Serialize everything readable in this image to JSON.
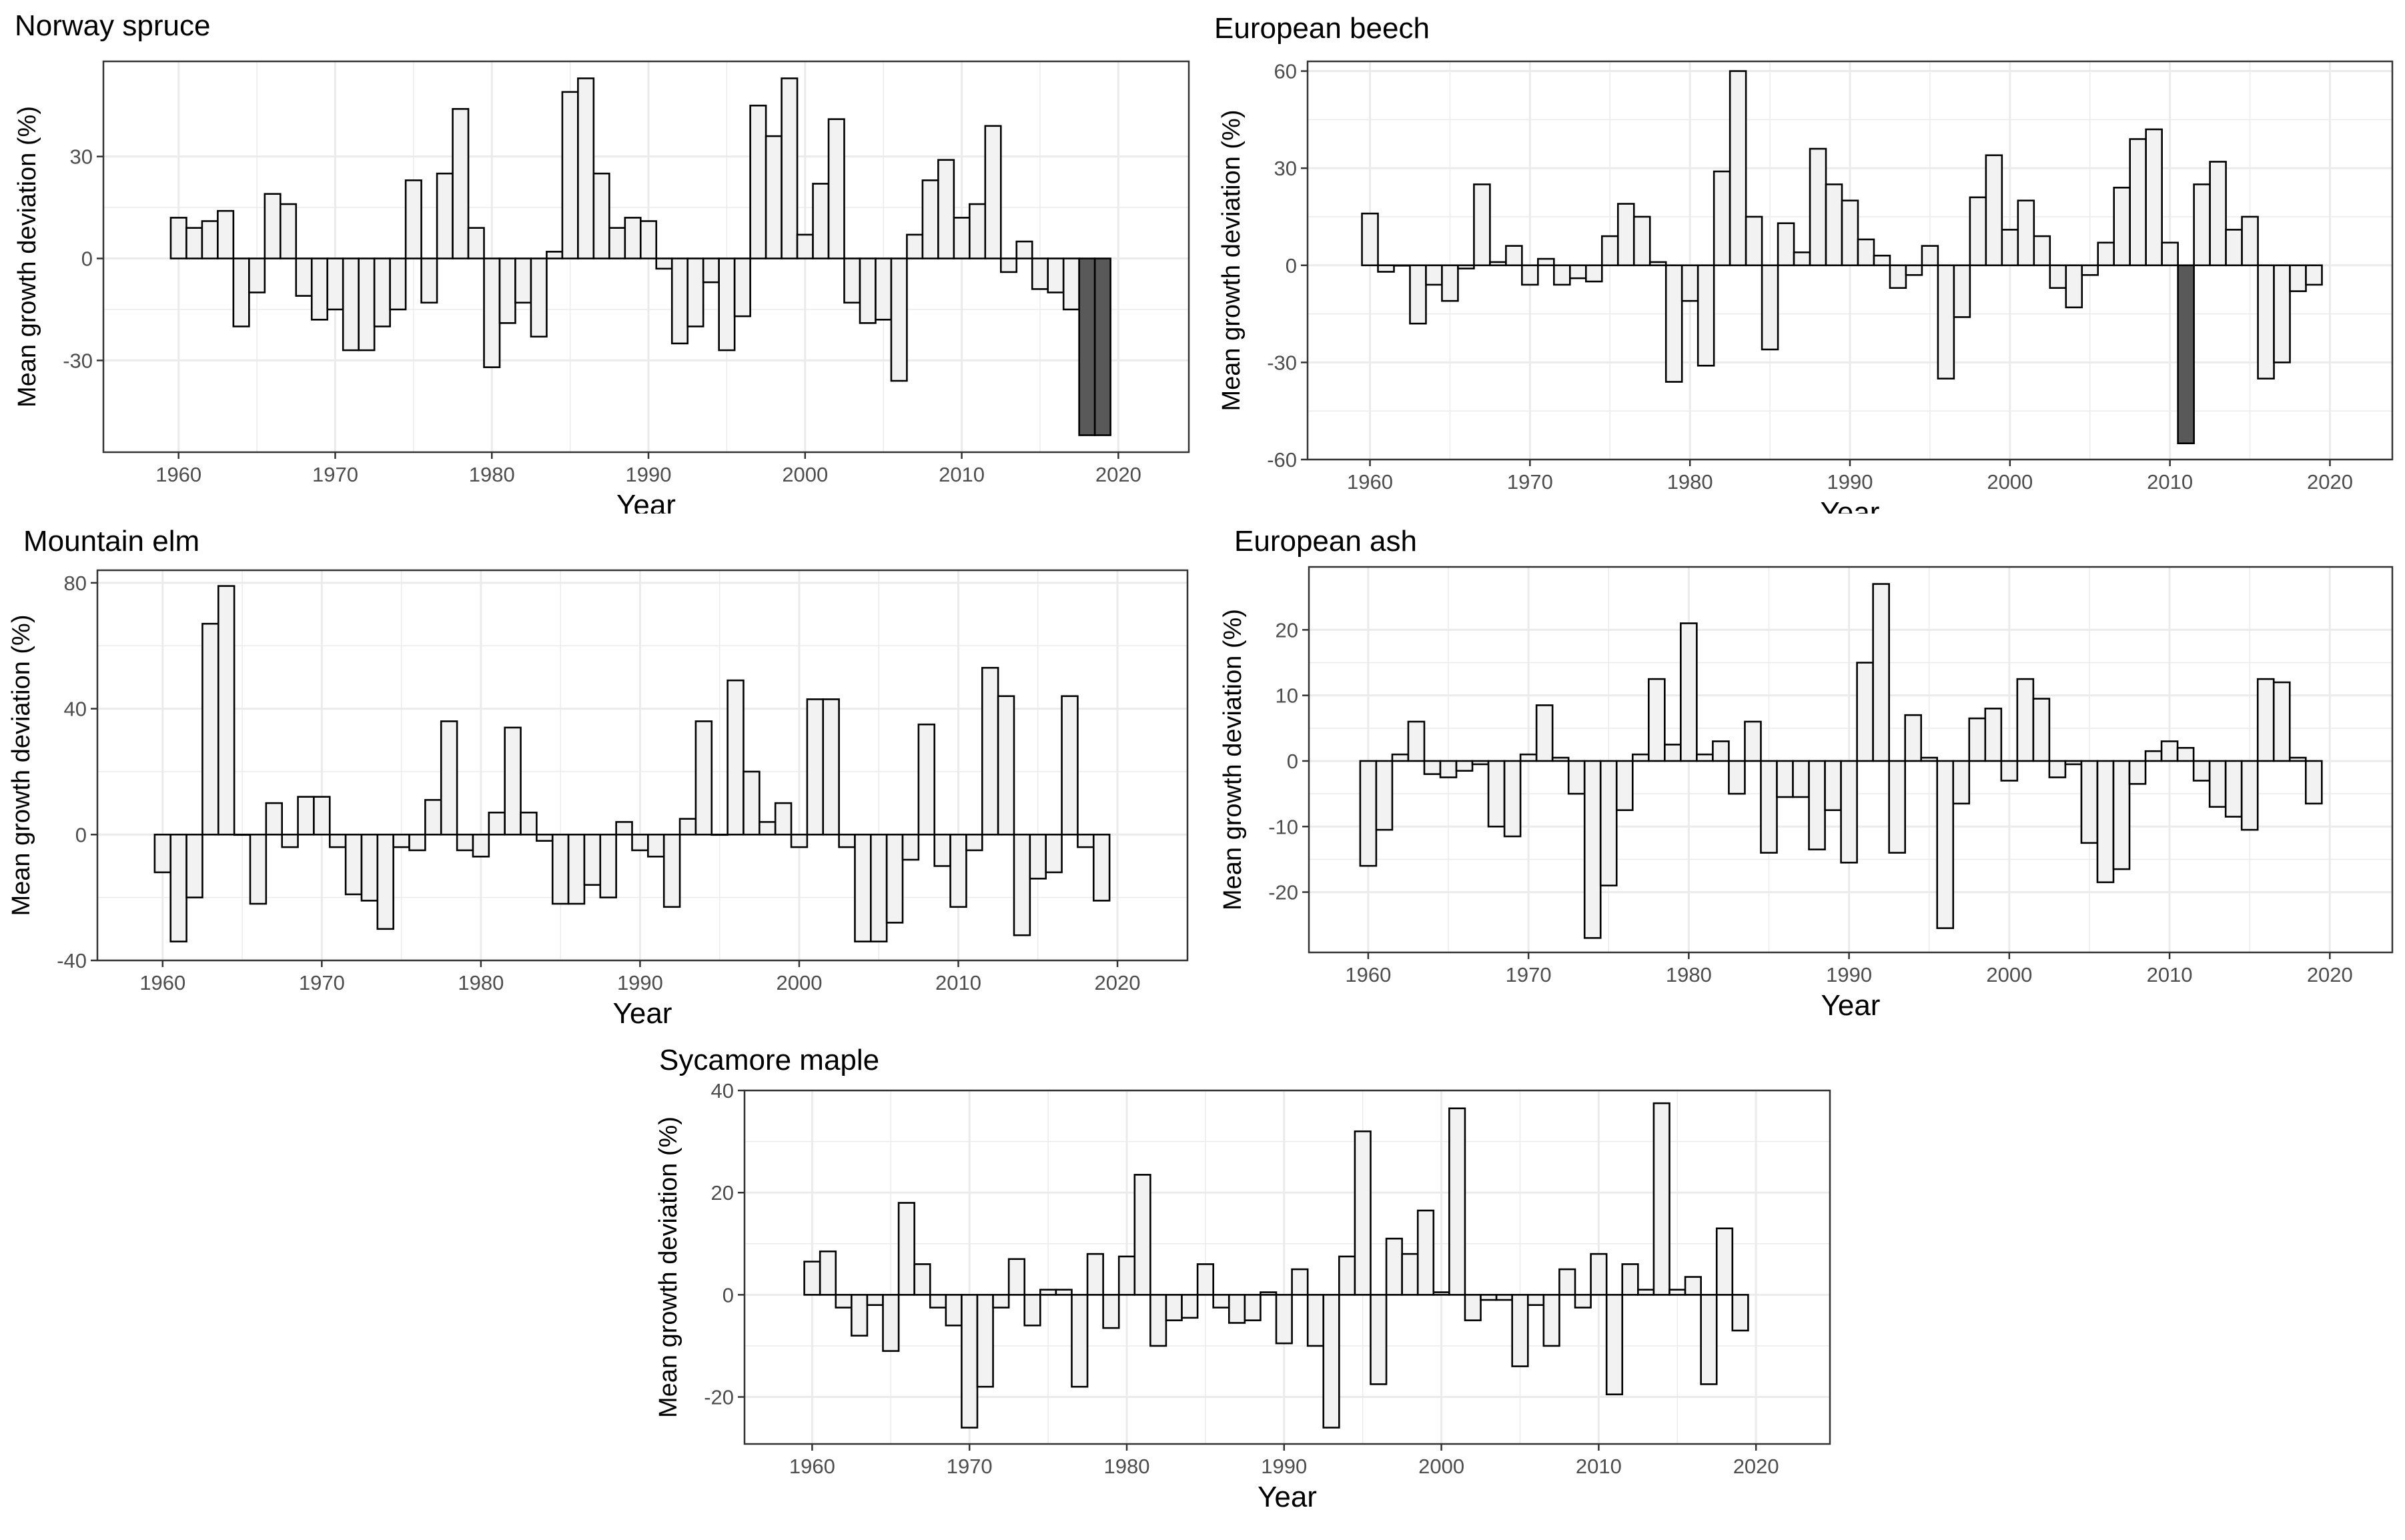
{
  "colors": {
    "bar_fill_light": "#f2f2f2",
    "bar_fill_dark": "#595959",
    "bar_stroke": "#000000",
    "grid": "#ebebeb",
    "panel_border": "#333333",
    "tick_text": "#4d4d4d"
  },
  "chart_data": [
    {
      "type": "bar",
      "title": "Norway spruce",
      "xlabel": "Year",
      "ylabel": "Mean growth deviation (%)",
      "xlim": [
        1955.2,
        2024.5
      ],
      "ylim": [
        -57,
        58
      ],
      "xticks": [
        1960,
        1970,
        1980,
        1990,
        2000,
        2010,
        2020
      ],
      "yticks": [
        -30,
        0,
        30
      ],
      "grid": true,
      "x": [
        1960,
        1961,
        1962,
        1963,
        1964,
        1965,
        1966,
        1967,
        1968,
        1969,
        1970,
        1971,
        1972,
        1973,
        1974,
        1975,
        1976,
        1977,
        1978,
        1979,
        1980,
        1981,
        1982,
        1983,
        1984,
        1985,
        1986,
        1987,
        1988,
        1989,
        1990,
        1991,
        1992,
        1993,
        1994,
        1995,
        1996,
        1997,
        1998,
        1999,
        2000,
        2001,
        2002,
        2003,
        2004,
        2005,
        2006,
        2007,
        2008,
        2009,
        2010,
        2011,
        2012,
        2013,
        2014,
        2015,
        2016,
        2017,
        2018,
        2019
      ],
      "values": [
        12,
        9,
        11,
        14,
        -20,
        -10,
        19,
        16,
        -11,
        -18,
        -15,
        -27,
        -27,
        -20,
        -15,
        23,
        -13,
        25,
        44,
        9,
        -32,
        -19,
        -13,
        -23,
        2,
        49,
        53,
        25,
        9,
        12,
        11,
        -3,
        -25,
        -20,
        -7,
        -27,
        -17,
        45,
        36,
        53,
        7,
        22,
        41,
        -13,
        -19,
        -18,
        -36,
        7,
        23,
        29,
        12,
        16,
        39,
        -4,
        5,
        -9,
        -10,
        -15,
        -52,
        -52
      ],
      "highlight_years": [
        2018,
        2019
      ]
    },
    {
      "type": "bar",
      "title": "European beech",
      "xlabel": "Year",
      "ylabel": "Mean growth deviation (%)",
      "xlim": [
        1956.1,
        2023.9
      ],
      "ylim": [
        -60,
        63
      ],
      "xticks": [
        1960,
        1970,
        1980,
        1990,
        2000,
        2010,
        2020
      ],
      "yticks": [
        -60,
        -30,
        0,
        30,
        60
      ],
      "grid": true,
      "x": [
        1960,
        1961,
        1962,
        1963,
        1964,
        1965,
        1966,
        1967,
        1968,
        1969,
        1970,
        1971,
        1972,
        1973,
        1974,
        1975,
        1976,
        1977,
        1978,
        1979,
        1980,
        1981,
        1982,
        1983,
        1984,
        1985,
        1986,
        1987,
        1988,
        1989,
        1990,
        1991,
        1992,
        1993,
        1994,
        1995,
        1996,
        1997,
        1998,
        1999,
        2000,
        2001,
        2002,
        2003,
        2004,
        2005,
        2006,
        2007,
        2008,
        2009,
        2010,
        2011,
        2012,
        2013,
        2014,
        2015,
        2016,
        2017,
        2018,
        2019
      ],
      "values": [
        16,
        -2,
        0,
        -18,
        -6,
        -11,
        -1,
        25,
        1,
        6,
        -6,
        2,
        -6,
        -4,
        -5,
        9,
        19,
        15,
        1,
        -36,
        -11,
        -31,
        29,
        60,
        15,
        -26,
        13,
        4,
        36,
        25,
        20,
        8,
        3,
        -7,
        -3,
        6,
        -35,
        -16,
        21,
        34,
        11,
        20,
        9,
        -7,
        -13,
        -3,
        7,
        24,
        39,
        42,
        7,
        -55,
        25,
        32,
        11,
        15,
        -35,
        -30,
        -8,
        -6
      ],
      "highlight_years": [
        2011
      ]
    },
    {
      "type": "bar",
      "title": "Mountain elm",
      "xlabel": "Year",
      "ylabel": "Mean growth deviation (%)",
      "xlim": [
        1955.9,
        2024.4
      ],
      "ylim": [
        -40,
        84
      ],
      "xticks": [
        1960,
        1970,
        1980,
        1990,
        2000,
        2010,
        2020
      ],
      "yticks": [
        -40,
        0,
        40,
        80
      ],
      "grid": true,
      "x": [
        1960,
        1961,
        1962,
        1963,
        1964,
        1965,
        1966,
        1967,
        1968,
        1969,
        1970,
        1971,
        1972,
        1973,
        1974,
        1975,
        1976,
        1977,
        1978,
        1979,
        1980,
        1981,
        1982,
        1983,
        1984,
        1985,
        1986,
        1987,
        1988,
        1989,
        1990,
        1991,
        1992,
        1993,
        1994,
        1995,
        1996,
        1997,
        1998,
        1999,
        2000,
        2001,
        2002,
        2003,
        2004,
        2005,
        2006,
        2007,
        2008,
        2009,
        2010,
        2011,
        2012,
        2013,
        2014,
        2015,
        2016,
        2017,
        2018,
        2019
      ],
      "values": [
        -12,
        -34,
        -20,
        67,
        79,
        0,
        -22,
        10,
        -4,
        12,
        12,
        -4,
        -19,
        -21,
        -30,
        -4,
        -5,
        11,
        36,
        -5,
        -7,
        7,
        34,
        7,
        -2,
        -22,
        -22,
        -16,
        -20,
        4,
        -5,
        -7,
        -23,
        5,
        36,
        0,
        49,
        20,
        4,
        10,
        -4,
        43,
        43,
        -4,
        -34,
        -34,
        -28,
        -8,
        35,
        -10,
        -23,
        -5,
        53,
        44,
        -32,
        -14,
        -12,
        44,
        -4,
        -21
      ],
      "highlight_years": []
    },
    {
      "type": "bar",
      "title": "European ash",
      "xlabel": "Year",
      "ylabel": "Mean growth deviation (%)",
      "xlim": [
        1956.3,
        2023.9
      ],
      "ylim": [
        -29.2,
        29.6
      ],
      "xticks": [
        1960,
        1970,
        1980,
        1990,
        2000,
        2010,
        2020
      ],
      "yticks": [
        -20,
        -10,
        0,
        10,
        20
      ],
      "grid": true,
      "x": [
        1960,
        1961,
        1962,
        1963,
        1964,
        1965,
        1966,
        1967,
        1968,
        1969,
        1970,
        1971,
        1972,
        1973,
        1974,
        1975,
        1976,
        1977,
        1978,
        1979,
        1980,
        1981,
        1982,
        1983,
        1984,
        1985,
        1986,
        1987,
        1988,
        1989,
        1990,
        1991,
        1992,
        1993,
        1994,
        1995,
        1996,
        1997,
        1998,
        1999,
        2000,
        2001,
        2002,
        2003,
        2004,
        2005,
        2006,
        2007,
        2008,
        2009,
        2010,
        2011,
        2012,
        2013,
        2014,
        2015,
        2016,
        2017,
        2018,
        2019
      ],
      "values": [
        -16,
        -10.5,
        1,
        6,
        -2,
        -2.5,
        -1.5,
        -0.5,
        -10,
        -11.5,
        1,
        8.5,
        0.5,
        -5,
        -27,
        -19,
        -7.5,
        1,
        12.5,
        2.5,
        21,
        1,
        3,
        -5,
        6,
        -14,
        -5.5,
        -5.5,
        -13.5,
        -7.5,
        -15.5,
        15,
        27,
        -14,
        7,
        0.5,
        -25.5,
        -6.5,
        6.5,
        8,
        -3,
        12.5,
        9.5,
        -2.5,
        -0.5,
        -12.5,
        -18.5,
        -16.5,
        -3.5,
        1.5,
        3,
        2,
        -3,
        -7,
        -8.5,
        -10.5,
        12.5,
        12,
        0.5,
        -6.5
      ],
      "highlight_years": []
    },
    {
      "type": "bar",
      "title": "Sycamore maple",
      "xlabel": "Year",
      "ylabel": "Mean growth deviation (%)",
      "xlim": [
        1955.7,
        2024.7
      ],
      "ylim": [
        -29.2,
        40
      ],
      "xticks": [
        1960,
        1970,
        1980,
        1990,
        2000,
        2010,
        2020
      ],
      "yticks": [
        -20,
        0,
        20,
        40
      ],
      "grid": true,
      "x": [
        1960,
        1961,
        1962,
        1963,
        1964,
        1965,
        1966,
        1967,
        1968,
        1969,
        1970,
        1971,
        1972,
        1973,
        1974,
        1975,
        1976,
        1977,
        1978,
        1979,
        1980,
        1981,
        1982,
        1983,
        1984,
        1985,
        1986,
        1987,
        1988,
        1989,
        1990,
        1991,
        1992,
        1993,
        1994,
        1995,
        1996,
        1997,
        1998,
        1999,
        2000,
        2001,
        2002,
        2003,
        2004,
        2005,
        2006,
        2007,
        2008,
        2009,
        2010,
        2011,
        2012,
        2013,
        2014,
        2015,
        2016,
        2017,
        2018,
        2019
      ],
      "values": [
        6.5,
        8.5,
        -2.5,
        -8,
        -2,
        -11,
        18,
        6,
        -2.5,
        -6,
        -26,
        -18,
        -2.5,
        7,
        -6,
        1,
        1,
        -18,
        8,
        -6.5,
        7.5,
        23.5,
        -10,
        -5,
        -4.5,
        6,
        -2.5,
        -5.5,
        -5,
        0.5,
        -9.5,
        5,
        -10,
        -26,
        7.5,
        32,
        -17.5,
        11,
        8,
        16.5,
        0.5,
        36.5,
        -5,
        -1,
        -1,
        -14,
        -2,
        -10,
        5,
        -2.5,
        8,
        -19.5,
        6,
        1,
        37.5,
        1,
        3.5,
        -17.5,
        13,
        -7
      ],
      "highlight_years": []
    }
  ]
}
